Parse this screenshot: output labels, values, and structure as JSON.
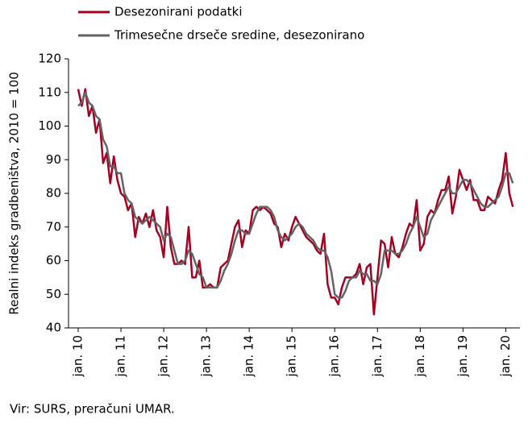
{
  "chart_data": {
    "type": "line",
    "y_label": "Realni indeks gradbeništva, 2010 = 100",
    "source": "Vir: SURS, preračuni UMAR.",
    "categories": [
      "jan. 10",
      null,
      null,
      null,
      null,
      null,
      null,
      null,
      null,
      null,
      null,
      null,
      "jan. 11",
      null,
      null,
      null,
      null,
      null,
      null,
      null,
      null,
      null,
      null,
      null,
      "jan. 12",
      null,
      null,
      null,
      null,
      null,
      null,
      null,
      null,
      null,
      null,
      null,
      "jan. 13",
      null,
      null,
      null,
      null,
      null,
      null,
      null,
      null,
      null,
      null,
      null,
      "jan. 14",
      null,
      null,
      null,
      null,
      null,
      null,
      null,
      null,
      null,
      null,
      null,
      "jan. 15",
      null,
      null,
      null,
      null,
      null,
      null,
      null,
      null,
      null,
      null,
      null,
      "jan. 16",
      null,
      null,
      null,
      null,
      null,
      null,
      null,
      null,
      null,
      null,
      null,
      "jan. 17",
      null,
      null,
      null,
      null,
      null,
      null,
      null,
      null,
      null,
      null,
      null,
      "jan. 18",
      null,
      null,
      null,
      null,
      null,
      null,
      null,
      null,
      null,
      null,
      null,
      "jan. 19",
      null,
      null,
      null,
      null,
      null,
      null,
      null,
      null,
      null,
      null,
      null,
      "jan. 20",
      null,
      null
    ],
    "series": [
      {
        "name": "Desezonirani podatki",
        "color": "#a50021",
        "values": [
          111,
          106,
          111,
          103,
          106,
          98,
          102,
          89,
          92,
          83,
          91,
          84,
          80,
          79,
          75,
          77,
          67,
          73,
          71,
          74,
          70,
          75,
          69,
          67,
          61,
          76,
          64,
          59,
          59,
          60,
          59,
          70,
          55,
          55,
          60,
          52,
          52,
          53,
          52,
          52,
          58,
          59,
          60,
          65,
          70,
          72,
          64,
          69,
          68,
          75,
          76,
          75,
          76,
          75,
          74,
          71,
          70,
          64,
          68,
          66,
          70,
          73,
          71,
          69,
          67,
          66,
          65,
          63,
          62,
          68,
          53,
          49,
          49,
          47,
          52,
          55,
          55,
          55,
          56,
          59,
          53,
          58,
          59,
          44,
          55,
          66,
          65,
          58,
          67,
          62,
          61,
          64,
          68,
          71,
          70,
          78,
          63,
          65,
          73,
          75,
          74,
          78,
          81,
          81,
          85,
          74,
          79,
          87,
          84,
          81,
          84,
          78,
          78,
          75,
          75,
          79,
          78,
          77,
          81,
          84,
          92,
          80,
          76
        ]
      },
      {
        "name": "Trimesečne drseče sredine, desezonirano",
        "color": "#636363",
        "values": [
          106,
          107,
          110,
          107,
          106,
          103,
          102,
          96,
          94,
          88,
          88,
          86,
          86,
          80,
          78,
          77,
          73,
          72,
          71,
          72,
          73,
          72,
          71,
          70,
          66,
          68,
          67,
          63,
          59,
          59,
          60,
          63,
          62,
          59,
          56,
          55,
          52,
          52,
          52,
          52,
          54,
          57,
          59,
          62,
          66,
          69,
          69,
          68,
          68,
          71,
          74,
          76,
          76,
          76,
          75,
          73,
          69,
          67,
          66,
          67,
          68,
          70,
          71,
          70,
          68,
          67,
          66,
          64,
          63,
          63,
          61,
          57,
          50,
          49,
          49,
          51,
          54,
          55,
          55,
          57,
          56,
          56,
          54,
          54,
          53,
          56,
          63,
          63,
          63,
          62,
          62,
          63,
          65,
          68,
          70,
          73,
          70,
          67,
          68,
          72,
          74,
          76,
          78,
          80,
          82,
          80,
          80,
          82,
          84,
          84,
          83,
          81,
          79,
          77,
          76,
          76,
          77,
          78,
          79,
          82,
          86,
          86,
          83
        ]
      }
    ],
    "ylim": [
      40,
      120
    ],
    "yticks": [
      40,
      50,
      60,
      70,
      80,
      90,
      100,
      110,
      120
    ]
  }
}
